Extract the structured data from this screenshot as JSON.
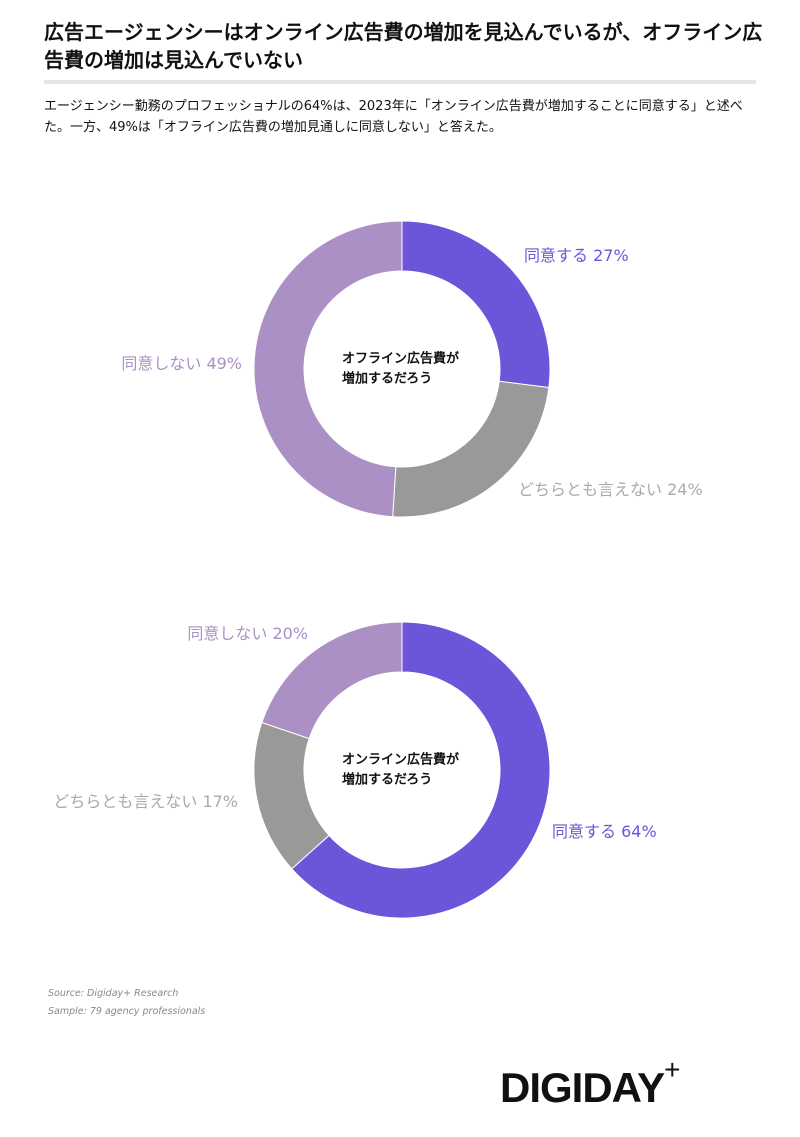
{
  "header": {
    "title": "広告エージェンシーはオンライン広告費の増加を見込んでいるが、オフライン広告費の増加は見込んでいない",
    "subtitle": "エージェンシー勤務のプロフェッショナルの64%は、2023年に「オンライン広告費が増加することに同意する」と述べた。一方、49%は「オフライン広告費の増加見通しに同意しない」と答えた。"
  },
  "chart_data": [
    {
      "type": "donut",
      "center_label": [
        "オフライン広告費が",
        "増加するだろう"
      ],
      "categories": [
        "同意する",
        "どちらとも言えない",
        "同意しない"
      ],
      "values": [
        27,
        24,
        49
      ],
      "value_labels": [
        "27%",
        "24%",
        "49%"
      ],
      "colors": [
        "#6b55d9",
        "#999999",
        "#ab90c6"
      ]
    },
    {
      "type": "donut",
      "center_label": [
        "オンライン広告費が",
        "増加するだろう"
      ],
      "categories": [
        "同意する",
        "どちらとも言えない",
        "同意しない"
      ],
      "values": [
        64,
        17,
        20
      ],
      "value_labels": [
        "64%",
        "17%",
        "20%"
      ],
      "colors": [
        "#6b55d9",
        "#999999",
        "#ab90c6"
      ]
    }
  ],
  "footer": {
    "source": "Source: Digiday+ Research",
    "sample": "Sample: 79 agency professionals",
    "logo": "DIGIDAY",
    "logo_mark": "+"
  }
}
